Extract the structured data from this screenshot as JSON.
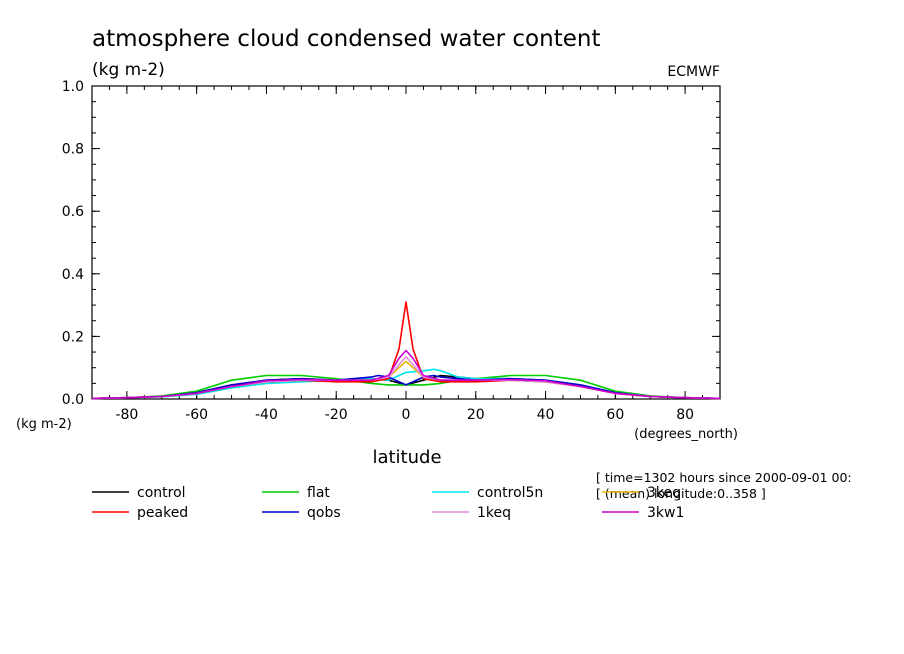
{
  "chart_data": {
    "type": "line",
    "title": "atmosphere cloud condensed water content",
    "ylabel": "(kg m-2)",
    "yunit_bottom": "(kg m-2)",
    "xlabel": "latitude",
    "xunit": "(degrees_north)",
    "source": "ECMWF",
    "xlim": [
      -90,
      90
    ],
    "ylim": [
      0,
      1.0
    ],
    "xticks": [
      -80,
      -60,
      -40,
      -20,
      0,
      20,
      40,
      60,
      80
    ],
    "xtick_labels": [
      "-80",
      "-60",
      "-40",
      "-20",
      "0",
      "20",
      "40",
      "60",
      "80"
    ],
    "yticks": [
      0,
      0.2,
      0.4,
      0.6,
      0.8,
      1.0
    ],
    "ytick_labels": [
      "0.0",
      "0.2",
      "0.4",
      "0.6",
      "0.8",
      "1.0"
    ],
    "grid": false,
    "legend_position": "bottom",
    "info_lines": [
      "[ time=1302 hours since 2000-09-01 00:",
      "[ (mean) longitude:0..358 ]"
    ],
    "series": [
      {
        "name": "control",
        "color": "#000000",
        "x": [
          -90,
          -80,
          -70,
          -60,
          -50,
          -40,
          -30,
          -20,
          -10,
          -5,
          0,
          5,
          10,
          15,
          20,
          30,
          40,
          50,
          60,
          70,
          80,
          90
        ],
        "y": [
          0.002,
          0.004,
          0.008,
          0.02,
          0.045,
          0.06,
          0.065,
          0.06,
          0.065,
          0.06,
          0.045,
          0.06,
          0.075,
          0.07,
          0.065,
          0.065,
          0.06,
          0.045,
          0.02,
          0.008,
          0.004,
          0.002
        ]
      },
      {
        "name": "flat",
        "color": "#00cc00",
        "x": [
          -90,
          -80,
          -70,
          -60,
          -50,
          -40,
          -30,
          -20,
          -10,
          -5,
          0,
          5,
          10,
          15,
          20,
          30,
          40,
          50,
          60,
          70,
          80,
          90
        ],
        "y": [
          0.002,
          0.004,
          0.01,
          0.025,
          0.06,
          0.075,
          0.075,
          0.065,
          0.05,
          0.045,
          0.045,
          0.045,
          0.05,
          0.06,
          0.065,
          0.075,
          0.075,
          0.06,
          0.025,
          0.01,
          0.004,
          0.002
        ]
      },
      {
        "name": "control5n",
        "color": "#00e5e5",
        "x": [
          -90,
          -80,
          -70,
          -60,
          -50,
          -40,
          -30,
          -20,
          -10,
          -5,
          0,
          5,
          8,
          10,
          15,
          20,
          30,
          40,
          50,
          60,
          70,
          80,
          90
        ],
        "y": [
          0.002,
          0.004,
          0.007,
          0.015,
          0.035,
          0.05,
          0.055,
          0.06,
          0.065,
          0.06,
          0.085,
          0.09,
          0.095,
          0.09,
          0.07,
          0.065,
          0.065,
          0.06,
          0.045,
          0.02,
          0.008,
          0.004,
          0.002
        ]
      },
      {
        "name": "3keq",
        "color": "#e5b400",
        "x": [
          -90,
          -80,
          -70,
          -60,
          -50,
          -40,
          -30,
          -20,
          -10,
          -5,
          -2,
          0,
          2,
          5,
          10,
          20,
          30,
          40,
          50,
          60,
          70,
          80,
          90
        ],
        "y": [
          0.002,
          0.004,
          0.008,
          0.018,
          0.04,
          0.055,
          0.06,
          0.06,
          0.06,
          0.07,
          0.1,
          0.12,
          0.1,
          0.07,
          0.06,
          0.06,
          0.06,
          0.055,
          0.04,
          0.018,
          0.008,
          0.004,
          0.002
        ]
      },
      {
        "name": "peaked",
        "color": "#ff0000",
        "x": [
          -90,
          -80,
          -70,
          -60,
          -50,
          -40,
          -30,
          -20,
          -10,
          -5,
          -2,
          0,
          2,
          5,
          10,
          20,
          30,
          40,
          50,
          60,
          70,
          80,
          90
        ],
        "y": [
          0.002,
          0.004,
          0.008,
          0.018,
          0.04,
          0.055,
          0.06,
          0.055,
          0.055,
          0.065,
          0.16,
          0.31,
          0.16,
          0.065,
          0.055,
          0.055,
          0.06,
          0.055,
          0.04,
          0.018,
          0.008,
          0.004,
          0.002
        ]
      },
      {
        "name": "qobs",
        "color": "#0000cc",
        "x": [
          -90,
          -80,
          -70,
          -60,
          -50,
          -40,
          -30,
          -20,
          -10,
          -8,
          -5,
          0,
          5,
          8,
          10,
          20,
          30,
          40,
          50,
          60,
          70,
          80,
          90
        ],
        "y": [
          0.002,
          0.004,
          0.008,
          0.02,
          0.045,
          0.06,
          0.065,
          0.06,
          0.07,
          0.075,
          0.07,
          0.045,
          0.07,
          0.075,
          0.07,
          0.06,
          0.065,
          0.06,
          0.045,
          0.02,
          0.008,
          0.004,
          0.002
        ]
      },
      {
        "name": "1keq",
        "color": "#e08ce0",
        "x": [
          -90,
          -80,
          -70,
          -60,
          -50,
          -40,
          -30,
          -20,
          -10,
          -5,
          -2,
          0,
          2,
          5,
          10,
          20,
          30,
          40,
          50,
          60,
          70,
          80,
          90
        ],
        "y": [
          0.002,
          0.004,
          0.008,
          0.018,
          0.04,
          0.055,
          0.06,
          0.06,
          0.06,
          0.07,
          0.11,
          0.135,
          0.11,
          0.07,
          0.06,
          0.06,
          0.06,
          0.055,
          0.04,
          0.018,
          0.008,
          0.004,
          0.002
        ]
      },
      {
        "name": "3kw1",
        "color": "#cc00cc",
        "x": [
          -90,
          -80,
          -70,
          -60,
          -50,
          -40,
          -30,
          -20,
          -10,
          -5,
          -2,
          0,
          2,
          5,
          10,
          20,
          30,
          40,
          50,
          60,
          70,
          80,
          90
        ],
        "y": [
          0.002,
          0.004,
          0.008,
          0.018,
          0.04,
          0.058,
          0.062,
          0.06,
          0.06,
          0.075,
          0.13,
          0.155,
          0.13,
          0.075,
          0.06,
          0.06,
          0.062,
          0.058,
          0.04,
          0.018,
          0.008,
          0.004,
          0.002
        ]
      }
    ]
  }
}
